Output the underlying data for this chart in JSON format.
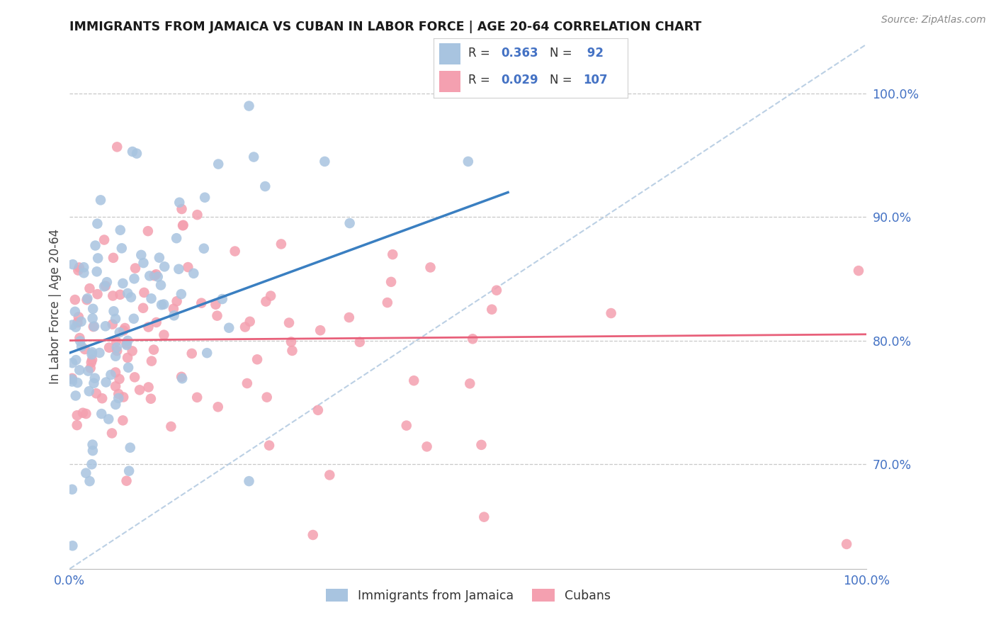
{
  "title": "IMMIGRANTS FROM JAMAICA VS CUBAN IN LABOR FORCE | AGE 20-64 CORRELATION CHART",
  "source": "Source: ZipAtlas.com",
  "ylabel": "In Labor Force | Age 20-64",
  "xlim": [
    0.0,
    1.0
  ],
  "ylim": [
    0.615,
    1.04
  ],
  "yticks": [
    0.7,
    0.8,
    0.9,
    1.0
  ],
  "ytick_labels": [
    "70.0%",
    "80.0%",
    "90.0%",
    "100.0%"
  ],
  "xticks": [
    0.0,
    0.25,
    0.5,
    0.75,
    1.0
  ],
  "xtick_labels": [
    "0.0%",
    "",
    "",
    "",
    "100.0%"
  ],
  "background_color": "#ffffff",
  "grid_color": "#c8c8c8",
  "jamaica_color": "#a8c4e0",
  "cuba_color": "#f4a0b0",
  "jamaica_line_color": "#3a7fc1",
  "cuba_line_color": "#e8607a",
  "diag_line_color": "#b0c8e0",
  "jamaica_R": 0.363,
  "jamaica_N": 92,
  "cuba_R": 0.029,
  "cuba_N": 107,
  "title_color": "#1a1a1a",
  "axis_tick_color": "#4472c4",
  "ylabel_color": "#444444",
  "source_color": "#888888",
  "legend_border_color": "#d0d0d0",
  "bottom_legend_color": "#333333"
}
